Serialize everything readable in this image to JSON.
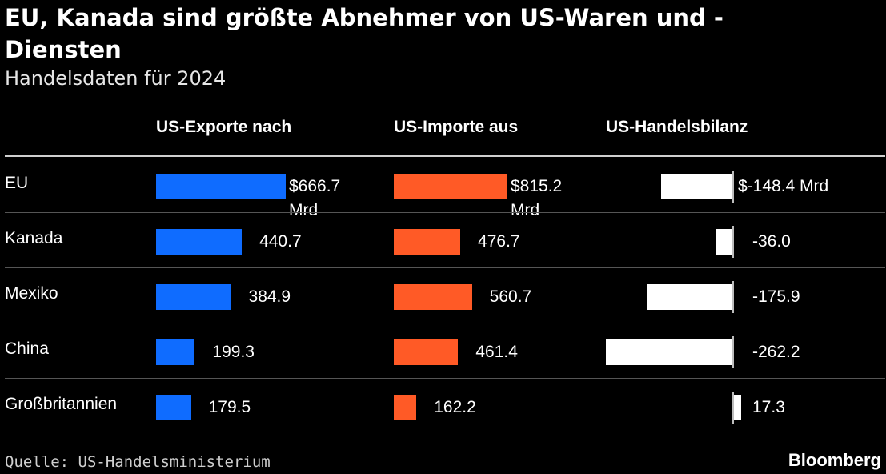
{
  "header": {
    "title": "EU, Kanada sind größte Abnehmer von US-Waren und -Diensten",
    "subtitle": "Handelsdaten für 2024"
  },
  "footer": {
    "source": "Quelle: US-Handelsministerium",
    "brand": "Bloomberg"
  },
  "colors": {
    "exports": "#0f6cff",
    "imports": "#ff5a26",
    "balance": "#ffffff"
  },
  "chart_data": {
    "type": "bar",
    "categories": [
      "EU",
      "Kanada",
      "Mexiko",
      "China",
      "Großbritannien"
    ],
    "series": [
      {
        "name": "US-Exporte nach",
        "values": [
          666.7,
          440.7,
          384.9,
          199.3,
          179.5
        ],
        "labels": [
          "$666.7 Mrd",
          "440.7",
          "384.9",
          "199.3",
          "179.5"
        ]
      },
      {
        "name": "US-Importe aus",
        "values": [
          815.2,
          476.7,
          560.7,
          461.4,
          162.2
        ],
        "labels": [
          "$815.2 Mrd",
          "476.7",
          "560.7",
          "461.4",
          "162.2"
        ]
      },
      {
        "name": "US-Handelsbilanz",
        "values": [
          -148.4,
          -36.0,
          -175.9,
          -262.2,
          17.3
        ],
        "labels": [
          "$-148.4 Mrd",
          "-36.0",
          "-175.9",
          "-262.2",
          "17.3"
        ]
      }
    ]
  }
}
